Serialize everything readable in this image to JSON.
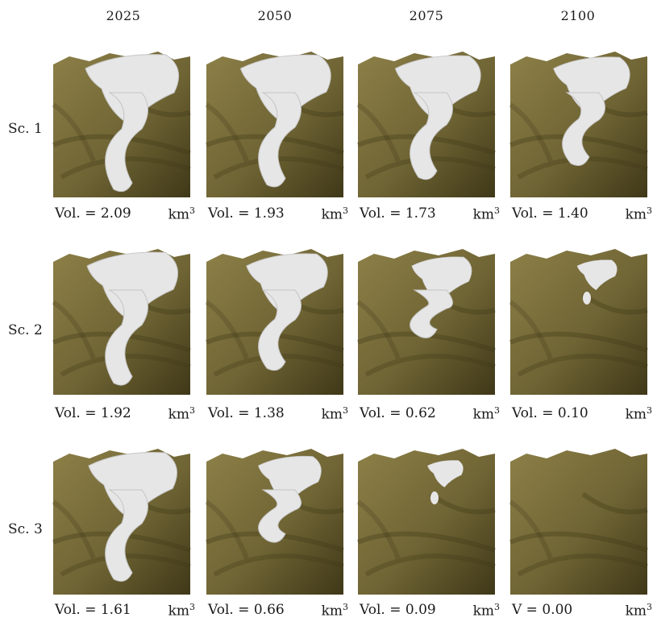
{
  "years": [
    "2025",
    "2050",
    "2075",
    "2100"
  ],
  "scenarios": [
    {
      "label": "Sc. 1",
      "panels": [
        {
          "prefix": "Vol. = ",
          "value": "2.09",
          "unit": "km",
          "exp": "3",
          "ice_fraction": 1.0
        },
        {
          "prefix": "Vol. = ",
          "value": "1.93",
          "unit": "km",
          "exp": "3",
          "ice_fraction": 0.95
        },
        {
          "prefix": "Vol. = ",
          "value": "1.73",
          "unit": "km",
          "exp": "3",
          "ice_fraction": 0.87
        },
        {
          "prefix": "Vol. = ",
          "value": "1.40",
          "unit": "km",
          "exp": "3",
          "ice_fraction": 0.72
        }
      ]
    },
    {
      "label": "Sc. 2",
      "panels": [
        {
          "prefix": "Vol. = ",
          "value": "1.92",
          "unit": "km",
          "exp": "3",
          "ice_fraction": 0.96
        },
        {
          "prefix": "Vol. = ",
          "value": "1.38",
          "unit": "km",
          "exp": "3",
          "ice_fraction": 0.8
        },
        {
          "prefix": "Vol. = ",
          "value": "0.62",
          "unit": "km",
          "exp": "3",
          "ice_fraction": 0.45
        },
        {
          "prefix": "Vol. = ",
          "value": "0.10",
          "unit": "km",
          "exp": "3",
          "ice_fraction": 0.12
        }
      ]
    },
    {
      "label": "Sc. 3",
      "panels": [
        {
          "prefix": "Vol. = ",
          "value": "1.61",
          "unit": "km",
          "exp": "3",
          "ice_fraction": 0.92
        },
        {
          "prefix": "Vol. = ",
          "value": "0.66",
          "unit": "km",
          "exp": "3",
          "ice_fraction": 0.5
        },
        {
          "prefix": "Vol. = ",
          "value": "0.09",
          "unit": "km",
          "exp": "3",
          "ice_fraction": 0.05
        },
        {
          "prefix": "V = ",
          "value": "0.00",
          "unit": "km",
          "exp": "3",
          "ice_fraction": 0.0
        }
      ]
    }
  ],
  "colors": {
    "terrain": "#6f6434",
    "terrain_dark": "#3f3818",
    "terrain_light": "#8d8048",
    "ice": "#e6e6e6",
    "ice_shade": "#c4c4c4"
  }
}
